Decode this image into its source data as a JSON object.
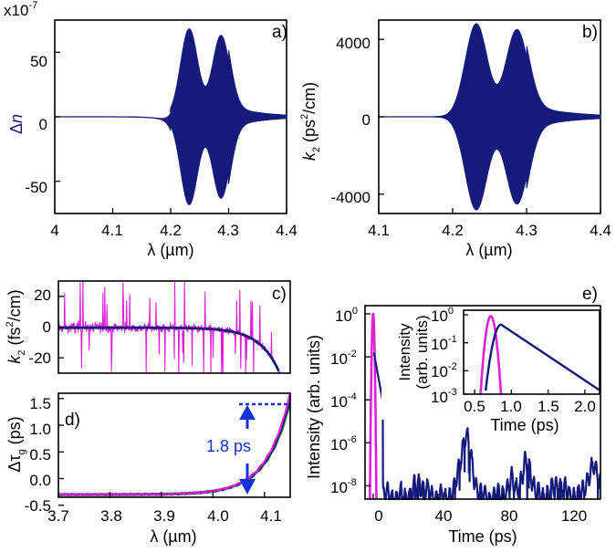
{
  "colors": {
    "navy": "#141b7a",
    "magenta": "#e020d8",
    "blue": "#1530e0",
    "green": "#2a9a3a",
    "black": "#000000"
  },
  "chart_data": [
    {
      "panel": "a)",
      "type": "line",
      "exponent_label": "x10",
      "exponent_power": "-7",
      "ylabel_sym": "Δ",
      "ylabel_var": "n",
      "xlabel": "λ (µm)",
      "xlim": [
        4.0,
        4.4
      ],
      "ylim": [
        -75,
        75
      ],
      "xticks": [
        "4",
        "4.1",
        "4.2",
        "4.3",
        "4.4"
      ],
      "yticks": [
        "50",
        "0",
        "-50"
      ],
      "ytick_values": [
        50,
        0,
        -50
      ],
      "series": [
        {
          "name": "Δn",
          "color": "#141b7a",
          "peaks": [
            {
              "center": 4.232,
              "amp": 68
            },
            {
              "center": 4.287,
              "amp": 63
            }
          ]
        }
      ]
    },
    {
      "panel": "b)",
      "type": "line",
      "ylabel_var": "k",
      "ylabel_sub": "2",
      "ylabel_unit": " (ps",
      "ylabel_sup": "2",
      "ylabel_end": "/cm)",
      "xlabel": "λ (µm)",
      "xlim": [
        4.1,
        4.4
      ],
      "ylim": [
        -5000,
        5000
      ],
      "xticks": [
        "4.1",
        "4.2",
        "4.3",
        "4.4"
      ],
      "yticks": [
        "4000",
        "0",
        "-4000"
      ],
      "ytick_values": [
        4000,
        0,
        -4000
      ],
      "series": [
        {
          "name": "k2",
          "color": "#141b7a",
          "peaks": [
            {
              "center": 4.232,
              "amp": 4800
            },
            {
              "center": 4.287,
              "amp": 4500
            }
          ]
        }
      ]
    },
    {
      "panel": "c)",
      "type": "line",
      "ylabel_var": "k",
      "ylabel_sub": "2",
      "ylabel_unit": " (fs",
      "ylabel_sup": "2",
      "ylabel_end": "/cm)",
      "xlim": [
        3.7,
        4.15
      ],
      "ylim": [
        -30,
        30
      ],
      "yticks": [
        "20",
        "0",
        "-20"
      ],
      "ytick_values": [
        20,
        0,
        -20
      ],
      "series": [
        {
          "name": "k2 noisy",
          "color": "#e020d8"
        },
        {
          "name": "k2 fit",
          "color": "#141b7a"
        }
      ]
    },
    {
      "panel": "d)",
      "type": "line",
      "ylabel_sym": "Δτ",
      "ylabel_sub": "g",
      "ylabel_unit": " (ps)",
      "xlabel": "λ (µm)",
      "xlim": [
        3.7,
        4.15
      ],
      "ylim": [
        -0.35,
        1.6
      ],
      "xticks": [
        "3.7",
        "3.8",
        "3.9",
        "4.0",
        "4.1"
      ],
      "xtick_values": [
        3.7,
        3.8,
        3.9,
        4.0,
        4.1
      ],
      "yticks": [
        "1.5",
        "1.0",
        "0.5",
        "0.0",
        "-0.5"
      ],
      "ytick_values": [
        1.5,
        1.0,
        0.5,
        0.0,
        -0.5
      ],
      "annotation": "1.8 ps",
      "series": [
        {
          "name": "black",
          "color": "#000000",
          "scale": 1.0
        },
        {
          "name": "green",
          "color": "#2a9a3a",
          "scale": 0.93
        },
        {
          "name": "navy",
          "color": "#141b7a",
          "scale": 0.97
        },
        {
          "name": "magenta",
          "color": "#e020d8",
          "scale": 1.03
        }
      ]
    },
    {
      "panel": "e)",
      "type": "line",
      "ylabel": "Intensity (arb. units)",
      "xlabel": "Time (ps)",
      "xlim": [
        -5,
        140
      ],
      "ylim_log10": [
        -9,
        0
      ],
      "xticks": [
        "0",
        "40",
        "80",
        "120"
      ],
      "xtick_values": [
        0,
        40,
        80,
        120
      ],
      "ytick_exponents": [
        "0",
        "-2",
        "-4",
        "-6",
        "-8"
      ],
      "ytick_base": "10",
      "series": [
        {
          "name": "input pulse",
          "color": "#e020d8"
        },
        {
          "name": "output pulse",
          "color": "#141b7a"
        }
      ],
      "inset": {
        "ylabel_1": "Intensity",
        "ylabel_2": "(arb. units)",
        "xlabel": "Time (ps)",
        "xlim": [
          0.35,
          2.2
        ],
        "ylim_log10": [
          -3,
          0
        ],
        "xticks": [
          "0.5",
          "1.0",
          "1.5",
          "2.0"
        ],
        "xtick_values": [
          0.5,
          1.0,
          1.5,
          2.0
        ],
        "ytick_exponents": [
          "0",
          "-1",
          "-2",
          "-3"
        ],
        "ytick_base": "10",
        "series": [
          {
            "name": "input pulse",
            "color": "#e020d8",
            "center": 0.72,
            "width": 0.055
          },
          {
            "name": "output pulse",
            "color": "#141b7a",
            "peak_t": 0.86,
            "tail_slope": 1.75
          }
        ]
      }
    }
  ]
}
